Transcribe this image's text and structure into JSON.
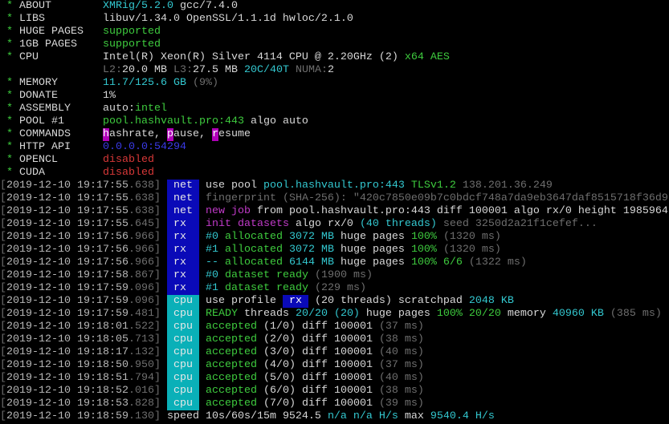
{
  "colors": {
    "w": "#d8d8d8",
    "c": "#33c8d0",
    "g": "#3ecb3e",
    "m": "#c03ac8",
    "gr": "#6e6e6e",
    "b": "#3a3ae8",
    "r": "#d83838",
    "star": "#3ecb3e",
    "tag_net": "#0a0ab8",
    "tag_rx": "#0a0ab8",
    "tag_cpu": "#0ab0b8",
    "cmd_bg": "#b000b8",
    "ts": "#b8b8b8"
  },
  "header": [
    {
      "label": "ABOUT",
      "parts": [
        [
          "XMRig/5.2.0",
          "c"
        ],
        [
          " gcc/7.4.0",
          "w"
        ]
      ]
    },
    {
      "label": "LIBS",
      "parts": [
        [
          "libuv/1.34.0 OpenSSL/1.1.1d hwloc/2.1.0",
          "w"
        ]
      ]
    },
    {
      "label": "HUGE PAGES",
      "parts": [
        [
          "supported",
          "g"
        ]
      ]
    },
    {
      "label": "1GB PAGES",
      "parts": [
        [
          "supported",
          "g"
        ]
      ]
    },
    {
      "label": "CPU",
      "parts": [
        [
          "Intel(R) Xeon(R) Silver 4114 CPU @ 2.20GHz (2) ",
          "w"
        ],
        [
          "x64 AES",
          "g"
        ]
      ]
    },
    {
      "label": "",
      "parts": [
        [
          "L2:",
          "gr"
        ],
        [
          "20.0 MB ",
          "w"
        ],
        [
          "L3:",
          "gr"
        ],
        [
          "27.5 MB ",
          "w"
        ],
        [
          "20C/40T ",
          "c"
        ],
        [
          "NUMA:",
          "gr"
        ],
        [
          "2",
          "w"
        ]
      ]
    },
    {
      "label": "MEMORY",
      "parts": [
        [
          "11.7/125.6 GB ",
          "c"
        ],
        [
          "(9%)",
          "gr"
        ]
      ]
    },
    {
      "label": "DONATE",
      "parts": [
        [
          "1%",
          "w"
        ]
      ]
    },
    {
      "label": "ASSEMBLY",
      "parts": [
        [
          "auto:",
          "w"
        ],
        [
          "intel",
          "g"
        ]
      ]
    },
    {
      "label": "POOL #1",
      "parts": [
        [
          "pool.hashvault.pro:443",
          "g"
        ],
        [
          " algo auto",
          "w"
        ]
      ]
    },
    {
      "label": "COMMANDS",
      "parts": [
        [
          "h",
          "cmd"
        ],
        [
          "ashrate, ",
          "w"
        ],
        [
          "p",
          "cmd"
        ],
        [
          "ause, ",
          "w"
        ],
        [
          "r",
          "cmd"
        ],
        [
          "esume",
          "w"
        ]
      ]
    },
    {
      "label": "HTTP API",
      "parts": [
        [
          "0.0.0.0:54294",
          "b"
        ]
      ]
    },
    {
      "label": "OPENCL",
      "parts": [
        [
          "disabled",
          "r"
        ]
      ]
    },
    {
      "label": "CUDA",
      "parts": [
        [
          "disabled",
          "r"
        ]
      ]
    }
  ],
  "log": [
    {
      "ts": "2019-12-10 19:17:55",
      "ms": "638",
      "tag": "net",
      "parts": [
        [
          "use pool ",
          "w"
        ],
        [
          "pool.hashvault.pro:443 ",
          "c"
        ],
        [
          "TLSv1.2 ",
          "g"
        ],
        [
          "138.201.36.249",
          "gr"
        ]
      ]
    },
    {
      "ts": "2019-12-10 19:17:55",
      "ms": "638",
      "tag": "net",
      "parts": [
        [
          "fingerprint (SHA-256): \"420c7850e09b7c0bdcf748a7da9eb3647daf8515718f36d9",
          "gr"
        ]
      ]
    },
    {
      "ts": "2019-12-10 19:17:55",
      "ms": "638",
      "tag": "net",
      "parts": [
        [
          "new job",
          "m"
        ],
        [
          " from pool.hashvault.pro:443 diff 100001 algo rx/0 height 1985964",
          "w"
        ]
      ]
    },
    {
      "ts": "2019-12-10 19:17:55",
      "ms": "645",
      "tag": "rx",
      "parts": [
        [
          "init datasets",
          "m"
        ],
        [
          " algo rx/0 ",
          "w"
        ],
        [
          "(40 threads)",
          "c"
        ],
        [
          " seed 3250d2a21f1cefef...",
          "gr"
        ]
      ]
    },
    {
      "ts": "2019-12-10 19:17:56",
      "ms": "966",
      "tag": "rx",
      "parts": [
        [
          "#0",
          "c"
        ],
        [
          " allocated ",
          "g"
        ],
        [
          "3072 MB",
          "c"
        ],
        [
          " huge pages ",
          "w"
        ],
        [
          "100% ",
          "g"
        ],
        [
          "(1320 ms)",
          "gr"
        ]
      ]
    },
    {
      "ts": "2019-12-10 19:17:56",
      "ms": "966",
      "tag": "rx",
      "parts": [
        [
          "#1",
          "c"
        ],
        [
          " allocated ",
          "g"
        ],
        [
          "3072 MB",
          "c"
        ],
        [
          " huge pages ",
          "w"
        ],
        [
          "100% ",
          "g"
        ],
        [
          "(1320 ms)",
          "gr"
        ]
      ]
    },
    {
      "ts": "2019-12-10 19:17:56",
      "ms": "966",
      "tag": "rx",
      "parts": [
        [
          "--",
          "c"
        ],
        [
          " allocated ",
          "g"
        ],
        [
          "6144 MB",
          "c"
        ],
        [
          " huge pages ",
          "w"
        ],
        [
          "100% 6/6 ",
          "g"
        ],
        [
          "(1322 ms)",
          "gr"
        ]
      ]
    },
    {
      "ts": "2019-12-10 19:17:58",
      "ms": "867",
      "tag": "rx",
      "parts": [
        [
          "#0",
          "c"
        ],
        [
          " dataset ready ",
          "g"
        ],
        [
          "(1900 ms)",
          "gr"
        ]
      ]
    },
    {
      "ts": "2019-12-10 19:17:59",
      "ms": "096",
      "tag": "rx",
      "parts": [
        [
          "#1",
          "c"
        ],
        [
          " dataset ready ",
          "g"
        ],
        [
          "(229 ms)",
          "gr"
        ]
      ]
    },
    {
      "ts": "2019-12-10 19:17:59",
      "ms": "096",
      "tag": "cpu",
      "parts": [
        [
          "use profile ",
          "w"
        ],
        [
          " rx ",
          "rxbadge"
        ],
        [
          " (20 threads)",
          "w"
        ],
        [
          " scratchpad ",
          "w"
        ],
        [
          "2048 KB",
          "c"
        ]
      ]
    },
    {
      "ts": "2019-12-10 19:17:59",
      "ms": "481",
      "tag": "cpu",
      "parts": [
        [
          "READY",
          "g"
        ],
        [
          " threads ",
          "w"
        ],
        [
          "20/20 (20)",
          "c"
        ],
        [
          " huge pages ",
          "w"
        ],
        [
          "100% 20/20",
          "g"
        ],
        [
          " memory ",
          "w"
        ],
        [
          "40960 KB ",
          "c"
        ],
        [
          "(385 ms)",
          "gr"
        ]
      ]
    },
    {
      "ts": "2019-12-10 19:18:01",
      "ms": "522",
      "tag": "cpu",
      "parts": [
        [
          "accepted",
          "g"
        ],
        [
          " (1/0) diff 100001 ",
          "w"
        ],
        [
          "(37 ms)",
          "gr"
        ]
      ]
    },
    {
      "ts": "2019-12-10 19:18:05",
      "ms": "713",
      "tag": "cpu",
      "parts": [
        [
          "accepted",
          "g"
        ],
        [
          " (2/0) diff 100001 ",
          "w"
        ],
        [
          "(38 ms)",
          "gr"
        ]
      ]
    },
    {
      "ts": "2019-12-10 19:18:17",
      "ms": "132",
      "tag": "cpu",
      "parts": [
        [
          "accepted",
          "g"
        ],
        [
          " (3/0) diff 100001 ",
          "w"
        ],
        [
          "(40 ms)",
          "gr"
        ]
      ]
    },
    {
      "ts": "2019-12-10 19:18:50",
      "ms": "950",
      "tag": "cpu",
      "parts": [
        [
          "accepted",
          "g"
        ],
        [
          " (4/0) diff 100001 ",
          "w"
        ],
        [
          "(37 ms)",
          "gr"
        ]
      ]
    },
    {
      "ts": "2019-12-10 19:18:51",
      "ms": "794",
      "tag": "cpu",
      "parts": [
        [
          "accepted",
          "g"
        ],
        [
          " (5/0) diff 100001 ",
          "w"
        ],
        [
          "(40 ms)",
          "gr"
        ]
      ]
    },
    {
      "ts": "2019-12-10 19:18:52",
      "ms": "016",
      "tag": "cpu",
      "parts": [
        [
          "accepted",
          "g"
        ],
        [
          " (6/0) diff 100001 ",
          "w"
        ],
        [
          "(38 ms)",
          "gr"
        ]
      ]
    },
    {
      "ts": "2019-12-10 19:18:53",
      "ms": "828",
      "tag": "cpu",
      "parts": [
        [
          "accepted",
          "g"
        ],
        [
          " (7/0) diff 100001 ",
          "w"
        ],
        [
          "(39 ms)",
          "gr"
        ]
      ]
    },
    {
      "ts": "2019-12-10 19:18:59",
      "ms": "130",
      "tag": "",
      "parts": [
        [
          "speed 10s/60s/15m ",
          "w"
        ],
        [
          "9524.5 ",
          "w"
        ],
        [
          "n/a n/a H/s",
          "c"
        ],
        [
          " max ",
          "w"
        ],
        [
          "9540.4 H/s",
          "c"
        ]
      ]
    }
  ]
}
